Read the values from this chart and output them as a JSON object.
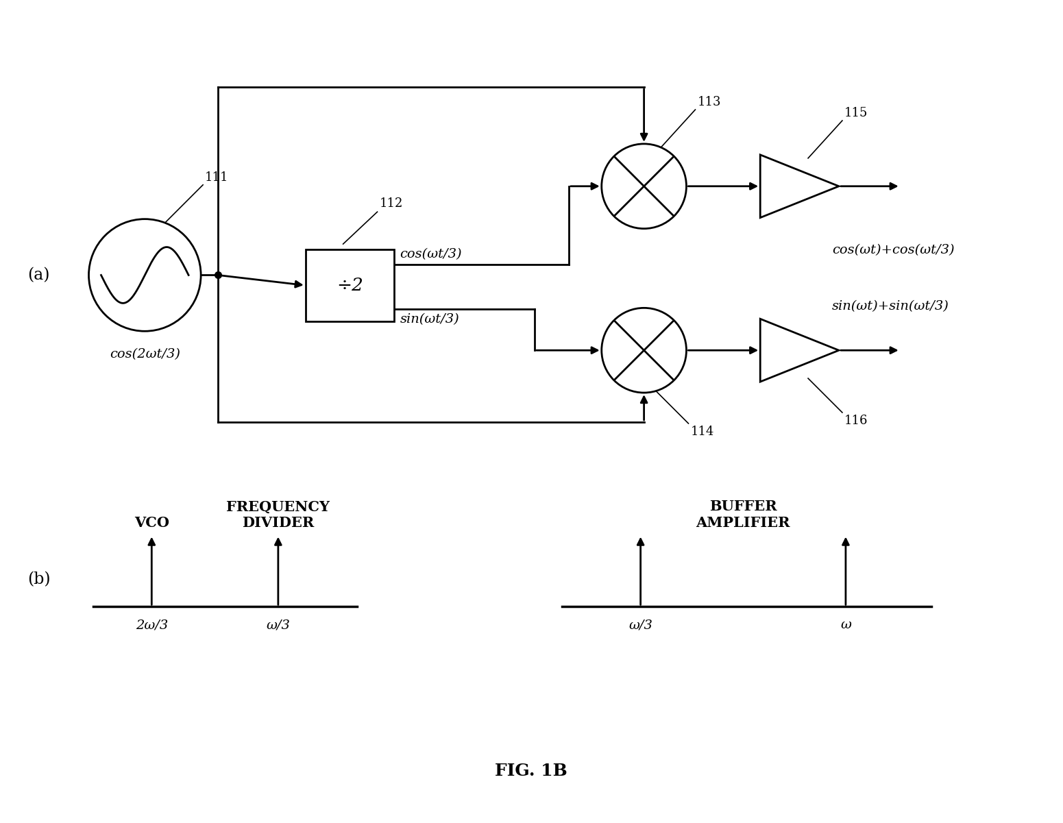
{
  "title": "FIG. 1B",
  "fig_width": 15.51,
  "fig_height": 12.01,
  "bg_color": "white",
  "label_a": "(a)",
  "label_b": "(b)",
  "node_111": "111",
  "node_112": "112",
  "node_113": "113",
  "node_114": "114",
  "node_115": "115",
  "node_116": "116",
  "cos_source": "cos(2ωt/3)",
  "divider_label": "÷2",
  "cos_out_upper": "cos(ωt/3)",
  "sin_out_upper": "sin(ωt/3)",
  "mixer_out_upper": "cos(ωt)+cos(ωt/3)",
  "mixer_out_lower": "sin(ωt)+sin(ωt/3)",
  "vco_label": "VCO",
  "freq_div_label": "FREQUENCY\nDIVIDER",
  "buf_amp_label": "BUFFER\nAMPLIFIER",
  "freq_2w3": "2ω/3",
  "freq_w3_1": "ω/3",
  "freq_w3_2": "ω/3",
  "freq_w": "ω",
  "lw": 2.0,
  "lw_thin": 1.2,
  "fs_main": 14,
  "fs_label": 13,
  "fs_math": 14,
  "fs_caption": 16
}
